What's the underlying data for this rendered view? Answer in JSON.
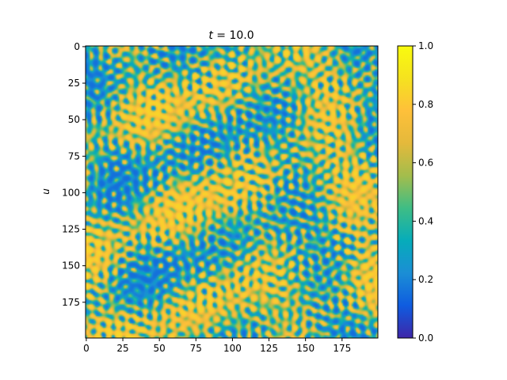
{
  "chart_data": {
    "type": "heatmap",
    "title": "t = 10.0",
    "title_italic_part": "t",
    "title_rest": " = 10.0",
    "xlabel": "",
    "ylabel": "u",
    "x_range": [
      0,
      199
    ],
    "y_range": [
      0,
      199
    ],
    "y_inverted": true,
    "x_ticks": [
      "0",
      "25",
      "50",
      "75",
      "100",
      "125",
      "150",
      "175"
    ],
    "y_ticks": [
      "0",
      "25",
      "50",
      "75",
      "100",
      "125",
      "150",
      "175"
    ],
    "colorbar": {
      "ticks": [
        "0.0",
        "0.2",
        "0.4",
        "0.6",
        "0.8",
        "1.0"
      ],
      "vmin": 0.0,
      "vmax": 1.0,
      "colormap": "parula-like",
      "colors": [
        "#3e26a8",
        "#0f5ce0",
        "#1b8ed5",
        "#06acba",
        "#3ebd85",
        "#a3bd4c",
        "#e4b93b",
        "#fec03a",
        "#f5e21f",
        "#f9fb0e"
      ]
    },
    "dominant_values": {
      "low": 0.15,
      "high": 0.85
    },
    "grid": false
  }
}
